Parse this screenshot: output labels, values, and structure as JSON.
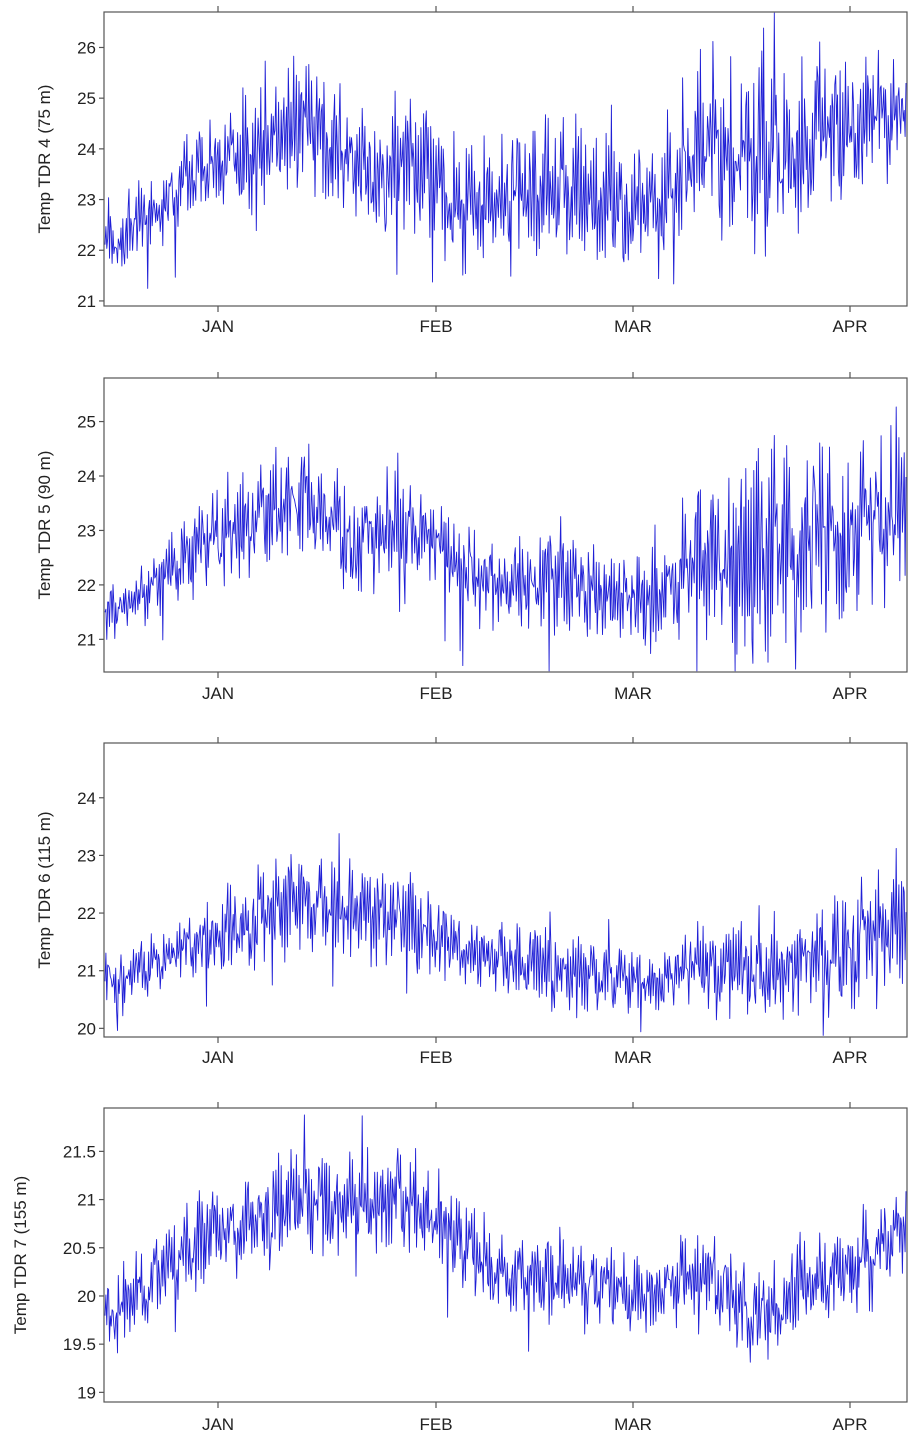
{
  "colors": {
    "series": "#1f1fd6",
    "axis": "#555555"
  },
  "chart_data": [
    {
      "type": "line",
      "ylabel": "Temp TDR 4 (75 m)",
      "x_ticks": [
        "JAN",
        "FEB",
        "MAR",
        "APR"
      ],
      "y_ticks": [
        "21",
        "22",
        "23",
        "24",
        "25",
        "26"
      ],
      "ylim": [
        20.9,
        26.7
      ],
      "series": [
        {
          "color": "#1f1fd6",
          "x": [
            "Dec 20",
            "Dec 25",
            "Jan 1",
            "Jan 8",
            "Jan 15",
            "Jan 22",
            "Jan 29",
            "Feb 5",
            "Feb 12",
            "Feb 19",
            "Feb 26",
            "Mar 5",
            "Mar 12",
            "Mar 19",
            "Mar 26",
            "Apr 2",
            "Apr 9"
          ],
          "center": [
            22.0,
            22.8,
            23.6,
            24.0,
            24.6,
            23.6,
            23.7,
            23.0,
            23.1,
            23.2,
            23.0,
            22.6,
            24.2,
            23.6,
            24.2,
            24.4,
            24.9
          ],
          "spread": [
            1.0,
            0.8,
            1.2,
            1.3,
            1.6,
            1.5,
            1.6,
            1.5,
            1.5,
            1.6,
            1.5,
            1.6,
            2.2,
            2.3,
            2.0,
            1.5,
            1.2
          ]
        }
      ]
    },
    {
      "type": "line",
      "ylabel": "Temp TDR 5 (90 m)",
      "x_ticks": [
        "JAN",
        "FEB",
        "MAR",
        "APR"
      ],
      "y_ticks": [
        "21",
        "22",
        "23",
        "24",
        "25"
      ],
      "ylim": [
        20.4,
        25.8
      ],
      "series": [
        {
          "color": "#1f1fd6",
          "x": [
            "Dec 20",
            "Dec 25",
            "Jan 1",
            "Jan 8",
            "Jan 15",
            "Jan 22",
            "Jan 29",
            "Feb 5",
            "Feb 12",
            "Feb 19",
            "Feb 26",
            "Mar 5",
            "Mar 12",
            "Mar 19",
            "Mar 26",
            "Apr 2",
            "Apr 9"
          ],
          "center": [
            21.4,
            22.0,
            22.8,
            23.2,
            23.6,
            22.8,
            23.3,
            22.4,
            22.0,
            22.1,
            21.8,
            21.7,
            22.6,
            22.4,
            22.8,
            23.0,
            23.6
          ],
          "spread": [
            0.7,
            0.6,
            1.0,
            1.1,
            1.2,
            1.2,
            1.2,
            1.0,
            1.0,
            1.2,
            1.0,
            1.0,
            1.8,
            2.4,
            2.2,
            2.2,
            1.8
          ]
        }
      ]
    },
    {
      "type": "line",
      "ylabel": "Temp TDR 6 (115 m)",
      "x_ticks": [
        "JAN",
        "FEB",
        "MAR",
        "APR"
      ],
      "y_ticks": [
        "20",
        "21",
        "22",
        "23",
        "24"
      ],
      "ylim": [
        19.85,
        24.95
      ],
      "series": [
        {
          "color": "#1f1fd6",
          "x": [
            "Dec 20",
            "Dec 25",
            "Jan 1",
            "Jan 8",
            "Jan 15",
            "Jan 22",
            "Jan 29",
            "Feb 5",
            "Feb 12",
            "Feb 19",
            "Feb 26",
            "Mar 5",
            "Mar 12",
            "Mar 19",
            "Mar 26",
            "Apr 2",
            "Apr 9"
          ],
          "center": [
            20.7,
            21.2,
            21.6,
            21.9,
            22.2,
            22.0,
            21.9,
            21.4,
            21.2,
            21.0,
            20.9,
            20.8,
            21.2,
            20.9,
            21.2,
            21.4,
            22.0
          ],
          "spread": [
            0.7,
            0.6,
            0.8,
            1.0,
            1.0,
            1.0,
            1.0,
            0.8,
            0.7,
            0.8,
            0.7,
            0.7,
            0.8,
            1.0,
            1.0,
            1.4,
            1.2
          ]
        }
      ]
    },
    {
      "type": "line",
      "ylabel": "Temp TDR 7 (155 m)",
      "x_ticks": [
        "JAN",
        "FEB",
        "MAR",
        "APR"
      ],
      "y_ticks": [
        "19",
        "19.5",
        "20",
        "20.5",
        "21",
        "21.5"
      ],
      "ylim": [
        18.9,
        21.95
      ],
      "series": [
        {
          "color": "#1f1fd6",
          "x": [
            "Dec 20",
            "Dec 25",
            "Jan 1",
            "Jan 8",
            "Jan 15",
            "Jan 22",
            "Jan 29",
            "Feb 5",
            "Feb 12",
            "Feb 19",
            "Feb 26",
            "Mar 5",
            "Mar 12",
            "Mar 19",
            "Mar 26",
            "Apr 2",
            "Apr 9"
          ],
          "center": [
            19.7,
            20.2,
            20.6,
            20.8,
            21.0,
            20.9,
            21.0,
            20.6,
            20.2,
            20.2,
            20.1,
            20.0,
            20.2,
            19.8,
            20.1,
            20.3,
            20.7
          ],
          "spread": [
            0.5,
            0.5,
            0.6,
            0.6,
            0.7,
            0.7,
            0.7,
            0.6,
            0.5,
            0.5,
            0.5,
            0.5,
            0.5,
            0.6,
            0.5,
            0.6,
            0.6
          ]
        }
      ]
    }
  ]
}
